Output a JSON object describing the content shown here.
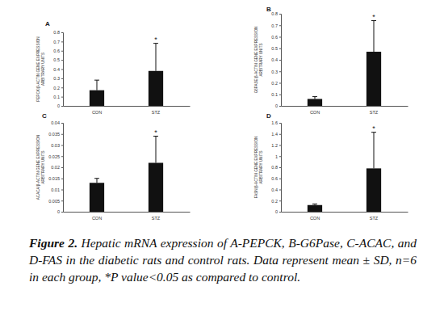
{
  "chart_data": [
    {
      "type": "bar",
      "title": "A",
      "categories": [
        "CON",
        "STZ"
      ],
      "values": [
        0.17,
        0.38
      ],
      "errors": [
        0.11,
        0.3
      ],
      "color": "#111111",
      "ylim": [
        0,
        0.8
      ],
      "yticks": [
        0,
        0.1,
        0.2,
        0.3,
        0.4,
        0.5,
        0.6,
        0.7,
        0.8
      ],
      "y_label": [
        "PEPCK/β-ACTIN GENE EXPRESSION",
        "ARBITRARY UNITS"
      ],
      "annotations": [
        {
          "category": "STZ",
          "text": "*"
        }
      ]
    },
    {
      "type": "bar",
      "title": "B",
      "categories": [
        "CON",
        "STZ"
      ],
      "values": [
        0.06,
        0.47
      ],
      "errors": [
        0.02,
        0.27
      ],
      "color": "#111111",
      "ylim": [
        0,
        0.8
      ],
      "yticks": [
        0,
        0.1,
        0.2,
        0.3,
        0.4,
        0.5,
        0.6,
        0.7,
        0.8
      ],
      "y_label": [
        "G6PASE/β-ACTIN GENE EXPRESSION",
        "ARBITRARY UNITS"
      ],
      "annotations": [
        {
          "category": "STZ",
          "text": "*"
        }
      ]
    },
    {
      "type": "bar",
      "title": "C",
      "categories": [
        "CON",
        "STZ"
      ],
      "values": [
        0.013,
        0.022
      ],
      "errors": [
        0.002,
        0.012
      ],
      "color": "#111111",
      "ylim": [
        0,
        0.04
      ],
      "yticks": [
        0,
        0.005,
        0.01,
        0.015,
        0.02,
        0.025,
        0.03,
        0.035,
        0.04
      ],
      "y_label": [
        "ACACA/β-ACTIN GENE EXPRESSION",
        "ARBITRARY UNITS"
      ],
      "annotations": [
        {
          "category": "STZ",
          "text": "*"
        }
      ]
    },
    {
      "type": "bar",
      "title": "D",
      "categories": [
        "CON",
        "STZ"
      ],
      "values": [
        0.12,
        0.78
      ],
      "errors": [
        0.02,
        0.65
      ],
      "color": "#111111",
      "ylim": [
        0,
        1.6
      ],
      "yticks": [
        0,
        0.2,
        0.4,
        0.6,
        0.8,
        1,
        1.2,
        1.4,
        1.6
      ],
      "y_label": [
        "FASN/β-ACTIN GENE EXPRESSION",
        "ARBITRARY UNITS"
      ],
      "annotations": [
        {
          "category": "STZ",
          "text": "*"
        }
      ]
    }
  ],
  "caption_label": "Figure 2.",
  "caption": "Hepatic mRNA expression of A-PEPCK, B-G6Pase, C-ACAC, and D-FAS in the diabetic rats and control rats. Data represent mean ± SD, n=6 in each group, *P value<0.05 as compared to control."
}
